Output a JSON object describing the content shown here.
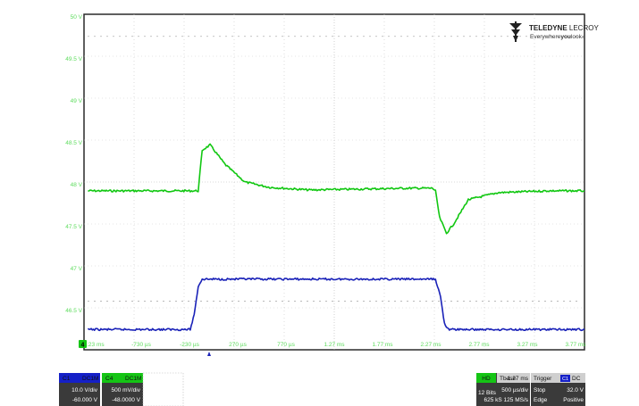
{
  "brand": {
    "name_bold": "TELEDYNE",
    "name_light": " LECROY",
    "tagline_pre": "Everywhere",
    "tagline_bold": "you",
    "tagline_post": "look",
    "trademark": "®"
  },
  "colors": {
    "frame": "#2a2a2a",
    "green_trace": "#11c711",
    "blue_trace": "#1a22b8",
    "tick_label": "#5ddc5d",
    "panel_dark": "#3a3a3a"
  },
  "axes": {
    "y_ticks": [
      "50 V",
      "49.5 V",
      "49 V",
      "48.5 V",
      "48 V",
      "47.5 V",
      "47 V",
      "46.5 V"
    ],
    "x_ticks": [
      "-1.23 ms",
      "-730 µs",
      "-230 µs",
      "270 µs",
      "770 µs",
      "1.27 ms",
      "1.77 ms",
      "2.27 ms",
      "2.77 ms",
      "3.27 ms",
      "3.77 ms"
    ],
    "ground_marker": "4"
  },
  "chart_data": {
    "type": "line",
    "series": [
      {
        "name": "C4",
        "color": "#11c711",
        "x_ms": [
          -1.23,
          -0.2,
          -0.12,
          -0.08,
          0.0,
          0.15,
          0.35,
          0.6,
          1.0,
          1.5,
          2.0,
          2.24,
          2.27,
          2.31,
          2.38,
          2.45,
          2.6,
          2.9,
          3.4,
          3.77
        ],
        "y_v": [
          48.0,
          48.0,
          48.0,
          48.46,
          48.52,
          48.3,
          48.1,
          48.04,
          48.01,
          48.02,
          48.03,
          48.03,
          48.0,
          47.7,
          47.52,
          47.62,
          47.9,
          47.98,
          48.0,
          48.0
        ]
      },
      {
        "name": "C1",
        "color": "#1a22b8",
        "x_ms": [
          -1.23,
          -0.2,
          -0.16,
          -0.12,
          -0.08,
          0.0,
          0.5,
          1.0,
          1.5,
          2.0,
          2.27,
          2.32,
          2.36,
          2.4,
          2.6,
          3.0,
          3.77
        ],
        "y_v": [
          46.43,
          46.43,
          46.6,
          46.92,
          47.0,
          47.0,
          47.0,
          47.0,
          47.0,
          47.0,
          47.0,
          46.8,
          46.5,
          46.43,
          46.43,
          46.43,
          46.43
        ]
      }
    ],
    "xlim_ms": [
      -1.27,
      3.77
    ],
    "ylim_v": [
      46.2,
      50.0
    ],
    "grid": true
  },
  "channels": [
    {
      "name": "C1",
      "coupling": "DC1M",
      "scale": "10.0 V/div",
      "offset": "-60.000 V",
      "color": "#1520c8",
      "text_color": "#111111"
    },
    {
      "name": "C4",
      "coupling": "DC1M",
      "scale": "500 mV/div",
      "offset": "-48.0000 V",
      "color": "#15c515",
      "text_color": "#111111"
    }
  ],
  "timebase": {
    "mode_label": "HD",
    "bits": "12 Bits",
    "label": "Tbase",
    "delay": "-1.27 ms",
    "per_div": "500 µs/div",
    "sample_info": "625 kS  125 MS/s"
  },
  "trigger": {
    "label": "Trigger",
    "tag": "C1",
    "coupling": "DC",
    "mode": "Stop",
    "level": "32.0 V",
    "type": "Edge",
    "slope": "Positive"
  }
}
